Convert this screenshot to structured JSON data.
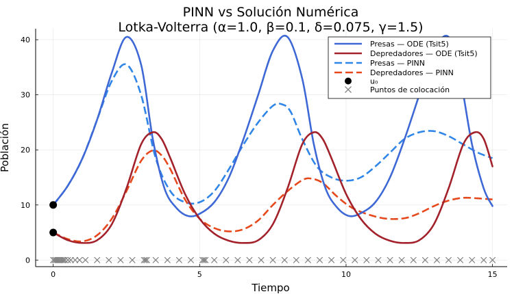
{
  "chart_data": {
    "type": "line",
    "title": "PINN vs Solución Numérica",
    "subtitle": "Lotka-Volterra  (α=1.0, β=0.1, δ=0.075, γ=1.5)",
    "xlabel": "Tiempo",
    "ylabel": "Población",
    "xlim": [
      -0.6,
      15.5
    ],
    "ylim": [
      -1.2,
      42
    ],
    "xticks": [
      0,
      5,
      10,
      15
    ],
    "yticks": [
      0,
      10,
      20,
      30,
      40
    ],
    "grid": true,
    "legend_position": "top-right",
    "series": [
      {
        "name": "Presas — ODE (Tsit5)",
        "color": "#3d68d6",
        "style": "solid",
        "x": [
          0,
          0.5,
          1.0,
          1.5,
          2.0,
          2.5,
          3.0,
          3.4,
          3.8,
          4.2,
          4.6,
          5.0,
          5.5,
          6.0,
          6.5,
          7.0,
          7.5,
          8.0,
          8.5,
          8.9,
          9.3,
          9.7,
          10.1,
          10.5,
          11.0,
          11.5,
          12.0,
          12.5,
          13.0,
          13.5,
          13.9,
          14.3,
          14.7,
          15.0
        ],
        "y": [
          10,
          13.5,
          18.5,
          25.5,
          34,
          40.5,
          35.5,
          22,
          13,
          9.5,
          8,
          8.4,
          10.5,
          15,
          22,
          30,
          38,
          40.5,
          33,
          21,
          13,
          9.5,
          8,
          8.5,
          10.5,
          15,
          22,
          30,
          38,
          40.5,
          33,
          21,
          13,
          9.8
        ]
      },
      {
        "name": "Depredadores — ODE (Tsit5)",
        "color": "#a3212a",
        "style": "solid",
        "x": [
          0,
          0.5,
          1.0,
          1.5,
          2.0,
          2.5,
          3.0,
          3.4,
          3.7,
          4.0,
          4.5,
          5.0,
          5.5,
          6.0,
          6.5,
          7.0,
          7.5,
          8.0,
          8.5,
          8.9,
          9.2,
          9.5,
          10.0,
          10.5,
          11.0,
          11.5,
          12.0,
          12.5,
          13.0,
          13.5,
          14.0,
          14.4,
          14.7,
          15.0
        ],
        "y": [
          5,
          3.6,
          3.1,
          3.6,
          6.5,
          13,
          21,
          23.2,
          22,
          18.5,
          12,
          7.5,
          4.8,
          3.5,
          3.1,
          3.6,
          6.5,
          13,
          21,
          23.2,
          22,
          18.5,
          12,
          7.5,
          4.8,
          3.5,
          3.1,
          3.6,
          6.5,
          13,
          21,
          23.2,
          22,
          17
        ]
      },
      {
        "name": "Presas — PINN",
        "color": "#2f86e8",
        "style": "dashed",
        "x": [
          0,
          0.5,
          1.0,
          1.5,
          2.0,
          2.5,
          3.0,
          3.5,
          4.0,
          4.5,
          5.0,
          5.5,
          6.0,
          6.5,
          7.0,
          7.5,
          7.8,
          8.1,
          8.5,
          9.0,
          9.5,
          10.0,
          10.5,
          11.0,
          11.5,
          12.0,
          12.5,
          13.0,
          13.5,
          14.0,
          14.5,
          15.0
        ],
        "y": [
          10,
          13.5,
          18.5,
          25.5,
          32.5,
          35.5,
          30,
          18.5,
          12.5,
          10.5,
          10.5,
          12.5,
          16.5,
          21,
          25,
          28,
          28.3,
          27,
          22,
          17,
          15,
          14.4,
          15,
          17,
          19.5,
          22,
          23.2,
          23.4,
          22.5,
          21,
          19.5,
          18.5
        ]
      },
      {
        "name": "Depredadores — PINN",
        "color": "#e6481c",
        "style": "dashed",
        "x": [
          0,
          0.5,
          1.0,
          1.5,
          2.0,
          2.5,
          3.0,
          3.4,
          3.7,
          4.0,
          4.5,
          5.0,
          5.5,
          6.0,
          6.5,
          7.0,
          7.5,
          8.0,
          8.5,
          8.8,
          9.2,
          9.7,
          10.2,
          10.8,
          11.4,
          12.0,
          12.5,
          13.0,
          13.5,
          14.0,
          14.5,
          15.0
        ],
        "y": [
          5,
          3.8,
          3.4,
          4.5,
          7.5,
          12.5,
          18,
          19.9,
          19,
          16.5,
          11,
          7.5,
          5.8,
          5.2,
          5.6,
          7.2,
          10,
          12.5,
          14.5,
          14.8,
          14,
          11.5,
          9.5,
          8.2,
          7.5,
          7.6,
          8.5,
          9.8,
          10.8,
          11.3,
          11.2,
          11
        ]
      }
    ],
    "markers": {
      "initial_condition": {
        "name": "u₀",
        "color": "#000000",
        "x": [
          0,
          0
        ],
        "y": [
          10,
          5
        ]
      },
      "collocation": {
        "name": "Puntos de colocación",
        "color": "#808080",
        "y": 0,
        "x": [
          0,
          0.05,
          0.1,
          0.15,
          0.2,
          0.25,
          0.3,
          0.35,
          0.4,
          0.5,
          0.6,
          0.75,
          0.9,
          1.1,
          1.5,
          1.9,
          2.3,
          2.7,
          3.1,
          3.15,
          3.2,
          3.5,
          3.9,
          4.3,
          4.7,
          5.1,
          5.15,
          5.2,
          5.5,
          5.9,
          6.3,
          6.7,
          7.1,
          7.5,
          7.9,
          8.3,
          8.7,
          9.1,
          9.5,
          9.9,
          10.3,
          10.7,
          11.1,
          11.5,
          11.9,
          12.3,
          12.7,
          13.1,
          13.5,
          13.9,
          14.3,
          14.7,
          15.0
        ]
      }
    }
  }
}
